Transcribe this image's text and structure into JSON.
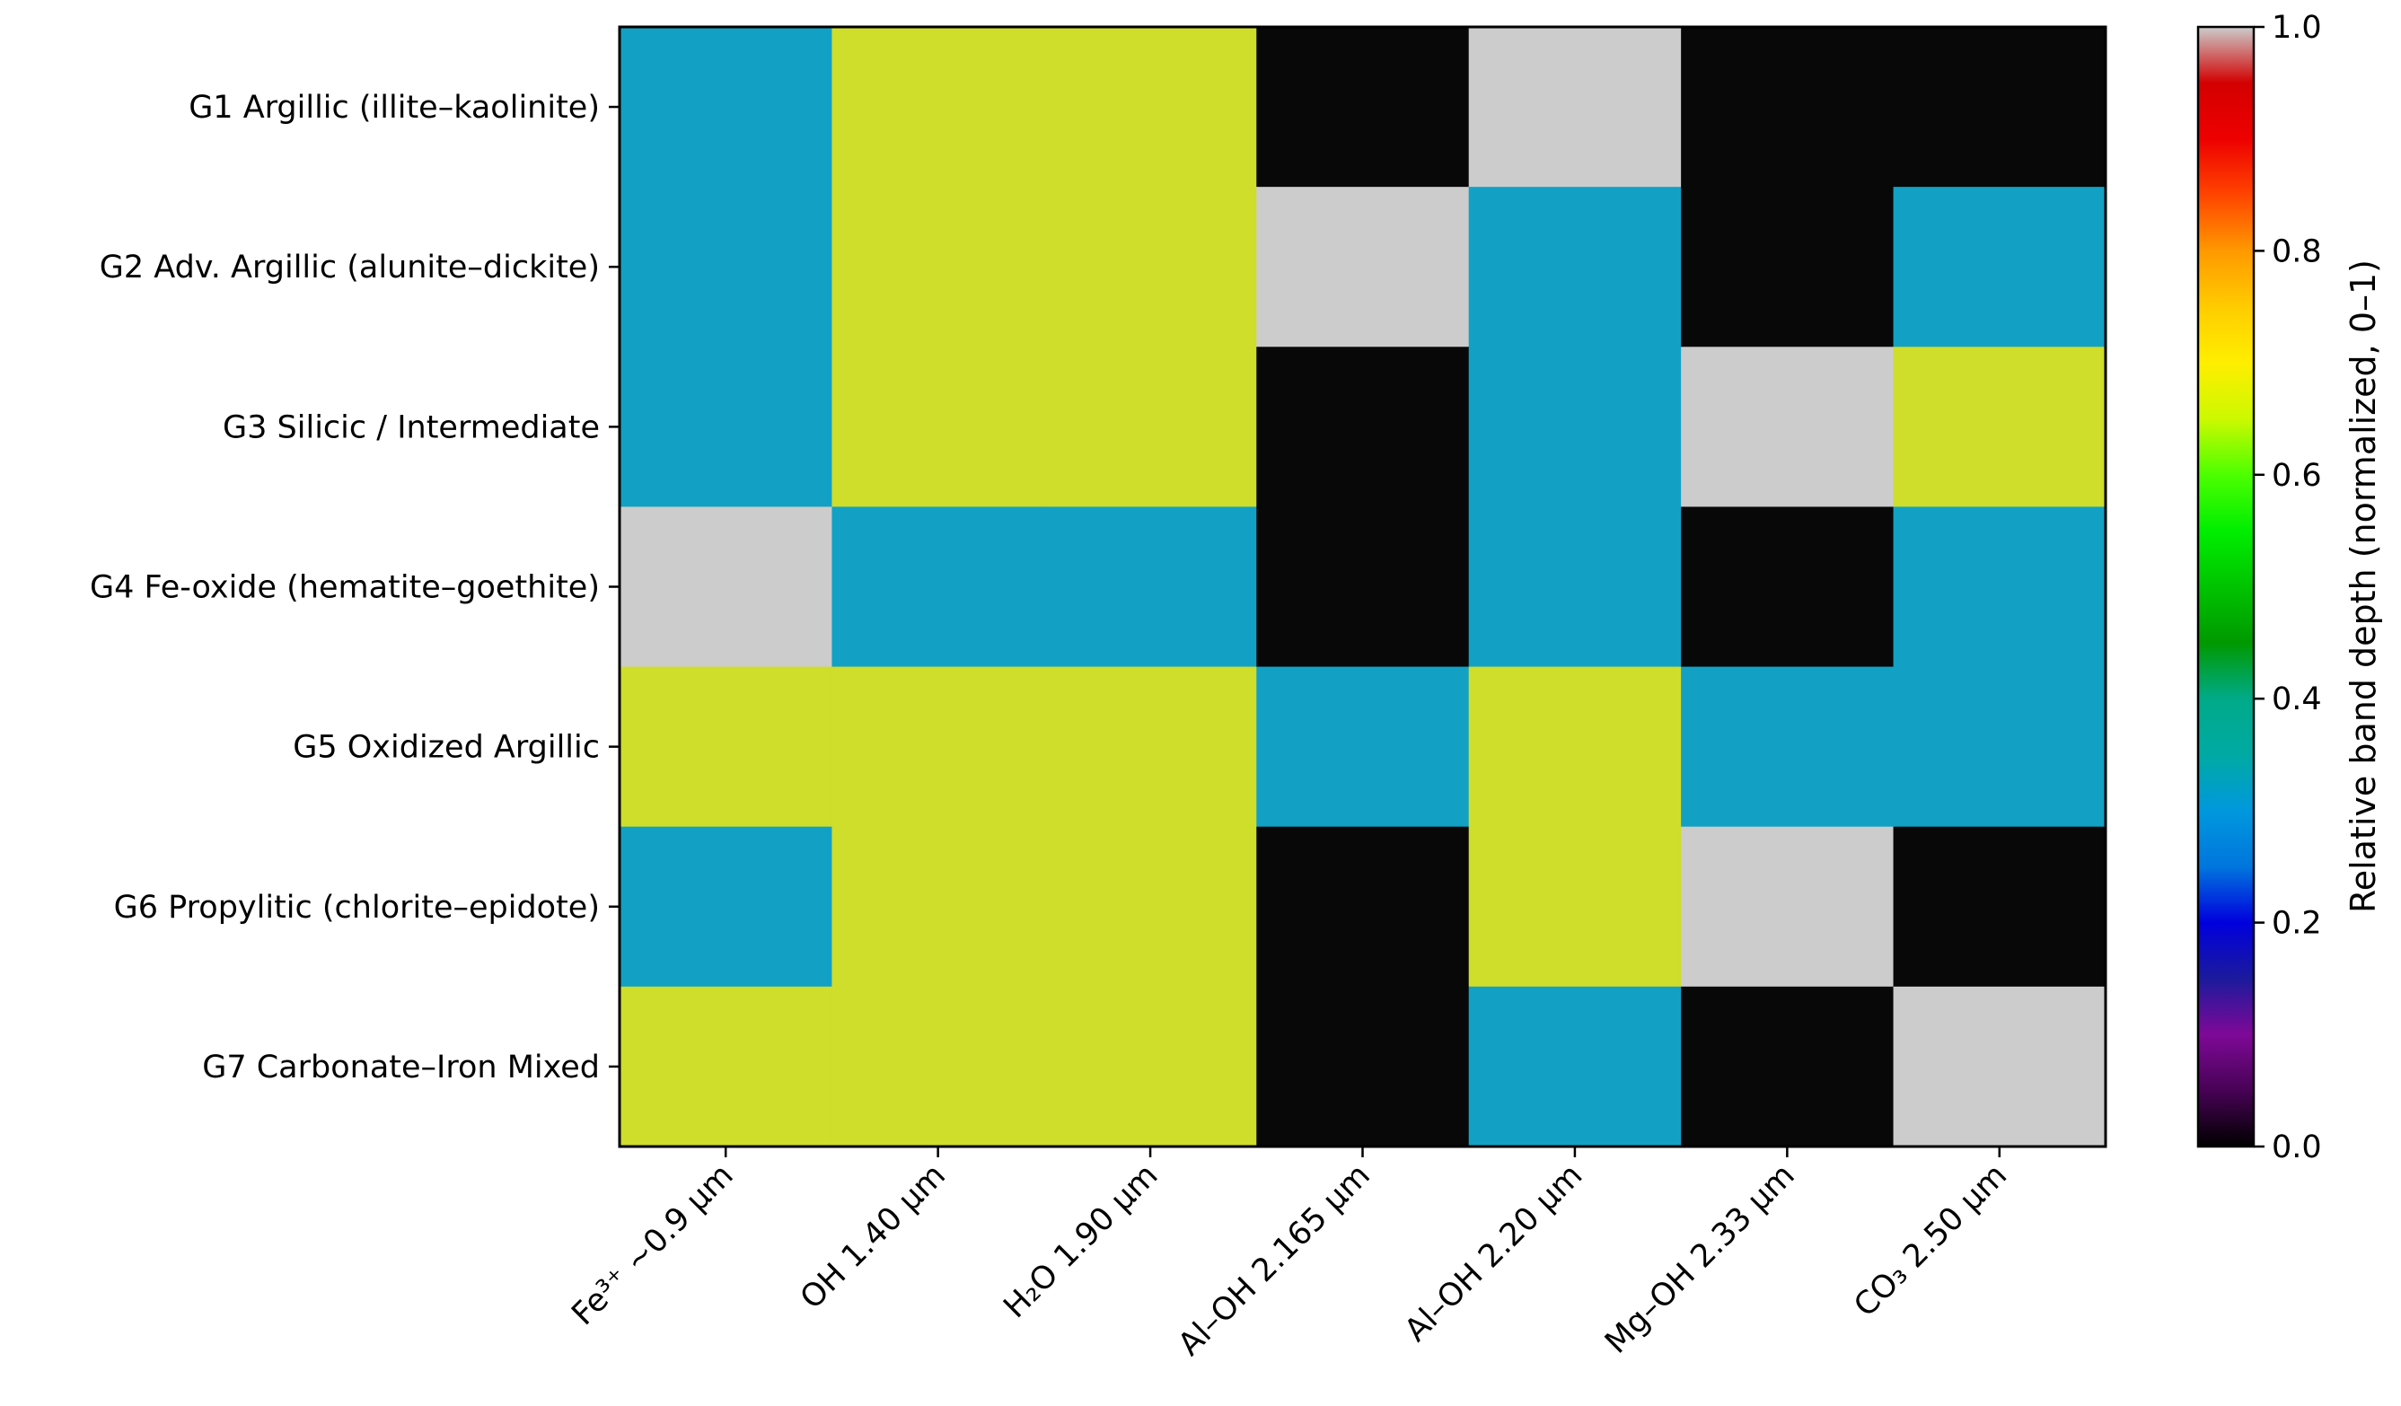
{
  "chart_data": {
    "type": "heatmap",
    "title": "",
    "xlabel": "",
    "ylabel": "",
    "rows": [
      "G1 Argillic (illite–kaolinite)",
      "G2 Adv. Argillic (alunite–dickite)",
      "G3 Silicic / Intermediate",
      "G4 Fe-oxide (hematite–goethite)",
      "G5 Oxidized Argillic",
      "G6 Propylitic (chlorite–epidote)",
      "G7 Carbonate–Iron Mixed"
    ],
    "columns": [
      "Fe³⁺ ~0.9 µm",
      "OH 1.40 µm",
      "H₂O 1.90 µm",
      "Al–OH 2.165 µm",
      "Al–OH 2.20 µm",
      "Mg–OH 2.33 µm",
      "CO₃ 2.50 µm"
    ],
    "values": [
      [
        0.3,
        0.7,
        0.7,
        0.0,
        1.0,
        0.0,
        0.0
      ],
      [
        0.3,
        0.7,
        0.7,
        1.0,
        0.3,
        0.0,
        0.3
      ],
      [
        0.3,
        0.7,
        0.7,
        0.0,
        0.3,
        1.0,
        0.7
      ],
      [
        1.0,
        0.3,
        0.3,
        0.0,
        0.3,
        0.0,
        0.3
      ],
      [
        0.7,
        0.7,
        0.7,
        0.3,
        0.7,
        0.3,
        0.3
      ],
      [
        0.3,
        0.7,
        0.7,
        0.0,
        0.7,
        1.0,
        0.0
      ],
      [
        0.7,
        0.7,
        0.7,
        0.0,
        0.3,
        0.0,
        1.0
      ]
    ],
    "vmin": 0.0,
    "vmax": 1.0,
    "colormap": "nipy_spectral",
    "colorbar": {
      "label": "Relative band depth (normalized, 0–1)",
      "ticks": [
        "0.0",
        "0.2",
        "0.4",
        "0.6",
        "0.8",
        "1.0"
      ],
      "tick_values": [
        0.0,
        0.2,
        0.4,
        0.6,
        0.8,
        1.0
      ]
    },
    "level_colors": {
      "0.0": "#080808",
      "0.3": "#12a1c4",
      "0.7": "#cfdd2b",
      "1.0": "#cccccc"
    },
    "colormap_stops": [
      [
        0.0,
        "#000000"
      ],
      [
        0.05,
        "#470255"
      ],
      [
        0.1,
        "#7e0997"
      ],
      [
        0.15,
        "#1c1a9c"
      ],
      [
        0.2,
        "#0000dd"
      ],
      [
        0.25,
        "#0076dd"
      ],
      [
        0.3,
        "#0098dd"
      ],
      [
        0.35,
        "#00aaa3"
      ],
      [
        0.4,
        "#00aa88"
      ],
      [
        0.45,
        "#009900"
      ],
      [
        0.5,
        "#00c300"
      ],
      [
        0.55,
        "#00ee00"
      ],
      [
        0.6,
        "#4cff00"
      ],
      [
        0.65,
        "#ccf900"
      ],
      [
        0.7,
        "#ffee00"
      ],
      [
        0.75,
        "#ffcc00"
      ],
      [
        0.8,
        "#ff9900"
      ],
      [
        0.85,
        "#ff4400"
      ],
      [
        0.9,
        "#ee0000"
      ],
      [
        0.95,
        "#d30000"
      ],
      [
        1.0,
        "#cccccc"
      ]
    ]
  }
}
